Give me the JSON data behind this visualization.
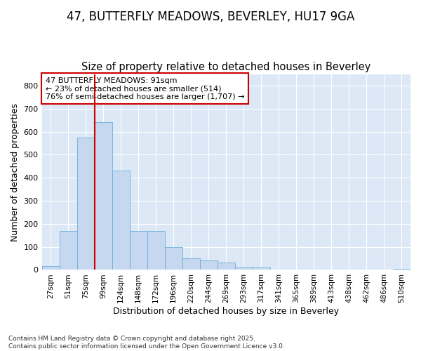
{
  "title_line1": "47, BUTTERFLY MEADOWS, BEVERLEY, HU17 9GA",
  "title_line2": "Size of property relative to detached houses in Beverley",
  "xlabel": "Distribution of detached houses by size in Beverley",
  "ylabel": "Number of detached properties",
  "categories": [
    "27sqm",
    "51sqm",
    "75sqm",
    "99sqm",
    "124sqm",
    "148sqm",
    "172sqm",
    "196sqm",
    "220sqm",
    "244sqm",
    "269sqm",
    "293sqm",
    "317sqm",
    "341sqm",
    "365sqm",
    "389sqm",
    "413sqm",
    "438sqm",
    "462sqm",
    "486sqm",
    "510sqm"
  ],
  "values": [
    18,
    168,
    575,
    640,
    430,
    170,
    170,
    100,
    50,
    40,
    32,
    12,
    10,
    0,
    0,
    0,
    0,
    0,
    0,
    0,
    5
  ],
  "bar_color": "#c5d8f0",
  "bar_edge_color": "#6baed6",
  "annotation_text": "47 BUTTERFLY MEADOWS: 91sqm\n← 23% of detached houses are smaller (514)\n76% of semi-detached houses are larger (1,707) →",
  "annotation_box_color": "#ffffff",
  "annotation_box_edge_color": "#cc0000",
  "vline_color": "#cc0000",
  "vline_x": 3.0,
  "ylim": [
    0,
    850
  ],
  "yticks": [
    0,
    100,
    200,
    300,
    400,
    500,
    600,
    700,
    800
  ],
  "background_color": "#dce8f5",
  "fig_background_color": "#ffffff",
  "footer_text": "Contains HM Land Registry data © Crown copyright and database right 2025.\nContains public sector information licensed under the Open Government Licence v3.0.",
  "title_fontsize": 12,
  "subtitle_fontsize": 10.5,
  "ylabel_fontsize": 9,
  "xlabel_fontsize": 9,
  "tick_fontsize": 7.5,
  "annotation_fontsize": 8,
  "footer_fontsize": 6.5
}
